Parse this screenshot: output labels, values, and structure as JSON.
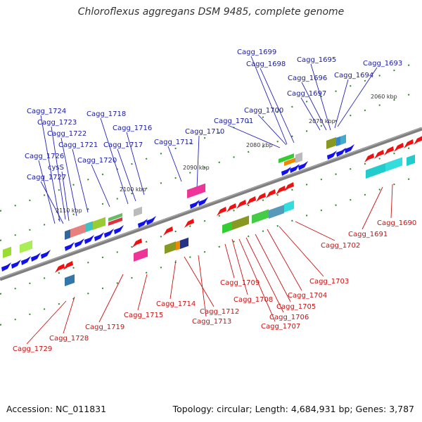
{
  "title": "Chloroflexus aggregans DSM 9485, complete genome",
  "accession": "Accession: NC_011831",
  "summary": "Topology: circular; Length: 4,684,931 bp; Genes: 3,787",
  "colors": {
    "forward_label": "#1a1aa6",
    "reverse_label": "#cc1111",
    "backbone": "#808080"
  },
  "ticks": [
    "2060 kbp",
    "2070 kbp",
    "2080 kbp",
    "2090 kbp",
    "2100 kbp",
    "2110 kbp"
  ],
  "gene_labels_top": [
    "Cagg_1699",
    "Cagg_1698",
    "Cagg_1695",
    "Cagg_1693",
    "Cagg_1696",
    "Cagg_1694",
    "Cagg_1697",
    "Cagg_1700",
    "Cagg_1701",
    "Cagg_1724",
    "Cagg_1718",
    "Cagg_1723",
    "Cagg_1716",
    "Cagg_1722",
    "Cagg_1710",
    "Cagg_1721",
    "Cagg_1717",
    "Cagg_1711",
    "Cagg_1726",
    "Cagg_1720",
    "cysS",
    "Cagg_1727"
  ],
  "gene_labels_bottom": [
    "Cagg_1690",
    "Cagg_1691",
    "Cagg_1702",
    "Cagg_1703",
    "Cagg_1704",
    "Cagg_1709",
    "Cagg_1708",
    "Cagg_1705",
    "Cagg_1714",
    "Cagg_1706",
    "Cagg_1712",
    "Cagg_1715",
    "Cagg_1713",
    "Cagg_1707",
    "Cagg_1719",
    "Cagg_1728",
    "Cagg_1729"
  ]
}
